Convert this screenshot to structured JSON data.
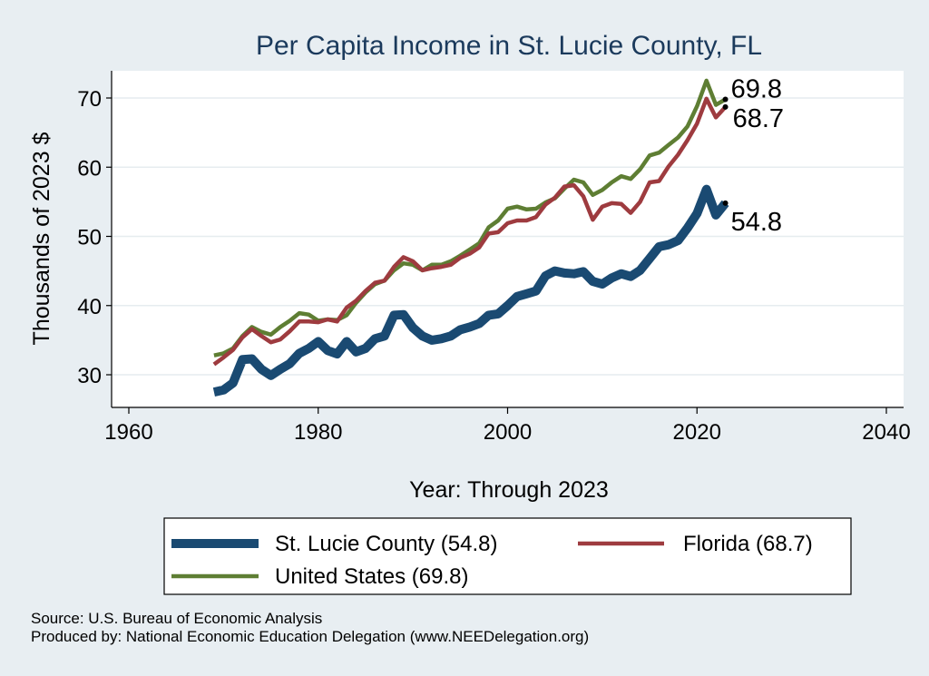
{
  "chart_data": {
    "type": "line",
    "title": "Per Capita Income in St. Lucie County, FL",
    "xlabel": "Year: Through 2023",
    "ylabel": "Thousands of 2023 $",
    "xlim": [
      1960,
      2040
    ],
    "ylim": [
      25,
      75
    ],
    "xticks": [
      1960,
      1980,
      2000,
      2020,
      2040
    ],
    "yticks": [
      30,
      40,
      50,
      60,
      70
    ],
    "grid": "horizontal",
    "legend_position": "bottom",
    "series": [
      {
        "name": "St. Lucie County (54.8)",
        "color": "#1a4a72",
        "end_label": "54.8",
        "x": [
          1969,
          1970,
          1971,
          1972,
          1973,
          1974,
          1975,
          1976,
          1977,
          1978,
          1979,
          1980,
          1981,
          1982,
          1983,
          1984,
          1985,
          1986,
          1987,
          1988,
          1989,
          1990,
          1991,
          1992,
          1993,
          1994,
          1995,
          1996,
          1997,
          1998,
          1999,
          2000,
          2001,
          2002,
          2003,
          2004,
          2005,
          2006,
          2007,
          2008,
          2009,
          2010,
          2011,
          2012,
          2013,
          2014,
          2015,
          2016,
          2017,
          2018,
          2019,
          2020,
          2021,
          2022,
          2023
        ],
        "y": [
          27.5,
          27.8,
          28.8,
          32.2,
          32.3,
          30.8,
          29.9,
          30.8,
          31.6,
          33.1,
          33.8,
          34.8,
          33.5,
          33.0,
          34.8,
          33.3,
          33.8,
          35.2,
          35.6,
          38.6,
          38.7,
          36.8,
          35.6,
          35.0,
          35.2,
          35.6,
          36.5,
          36.9,
          37.4,
          38.6,
          38.8,
          40.0,
          41.3,
          41.7,
          42.1,
          44.3,
          45.0,
          44.7,
          44.6,
          44.9,
          43.5,
          43.1,
          44.0,
          44.6,
          44.2,
          45.1,
          46.8,
          48.5,
          48.8,
          49.4,
          51.2,
          53.3,
          56.8,
          53.1,
          54.8
        ]
      },
      {
        "name": "Florida (68.7)",
        "color": "#9e3b3f",
        "end_label": "68.7",
        "x": [
          1969,
          1970,
          1971,
          1972,
          1973,
          1974,
          1975,
          1976,
          1977,
          1978,
          1979,
          1980,
          1981,
          1982,
          1983,
          1984,
          1985,
          1986,
          1987,
          1988,
          1989,
          1990,
          1991,
          1992,
          1993,
          1994,
          1995,
          1996,
          1997,
          1998,
          1999,
          2000,
          2001,
          2002,
          2003,
          2004,
          2005,
          2006,
          2007,
          2008,
          2009,
          2010,
          2011,
          2012,
          2013,
          2014,
          2015,
          2016,
          2017,
          2018,
          2019,
          2020,
          2021,
          2022,
          2023
        ],
        "y": [
          31.5,
          32.5,
          33.6,
          35.4,
          36.6,
          35.6,
          34.7,
          35.1,
          36.3,
          37.7,
          37.7,
          37.6,
          38.0,
          37.7,
          39.7,
          40.7,
          42.1,
          43.3,
          43.6,
          45.6,
          47.0,
          46.4,
          45.1,
          45.4,
          45.6,
          45.9,
          46.9,
          47.5,
          48.4,
          50.4,
          50.6,
          51.9,
          52.3,
          52.3,
          52.8,
          54.6,
          55.6,
          57.2,
          57.4,
          55.8,
          52.4,
          54.3,
          54.8,
          54.7,
          53.4,
          55.0,
          57.8,
          58.0,
          60.1,
          61.8,
          63.9,
          66.3,
          69.9,
          67.2,
          68.7
        ]
      },
      {
        "name": "United States (69.8)",
        "color": "#5e7e33",
        "end_label": "69.8",
        "x": [
          1969,
          1970,
          1971,
          1972,
          1973,
          1974,
          1975,
          1976,
          1977,
          1978,
          1979,
          1980,
          1981,
          1982,
          1983,
          1984,
          1985,
          1986,
          1987,
          1988,
          1989,
          1990,
          1991,
          1992,
          1993,
          1994,
          1995,
          1996,
          1997,
          1998,
          1999,
          2000,
          2001,
          2002,
          2003,
          2004,
          2005,
          2006,
          2007,
          2008,
          2009,
          2010,
          2011,
          2012,
          2013,
          2014,
          2015,
          2016,
          2017,
          2018,
          2019,
          2020,
          2021,
          2022,
          2023
        ],
        "y": [
          32.8,
          33.1,
          33.8,
          35.6,
          36.9,
          36.2,
          35.8,
          36.9,
          37.8,
          38.9,
          38.7,
          37.8,
          38.0,
          37.9,
          38.6,
          40.4,
          41.9,
          43.1,
          43.6,
          45.1,
          46.1,
          45.9,
          45.1,
          45.9,
          45.9,
          46.4,
          47.2,
          48.1,
          49.0,
          51.3,
          52.3,
          54.0,
          54.3,
          53.9,
          54.0,
          54.9,
          55.5,
          56.9,
          58.2,
          57.8,
          56.0,
          56.7,
          57.8,
          58.7,
          58.3,
          59.7,
          61.7,
          62.1,
          63.2,
          64.3,
          65.9,
          68.8,
          72.5,
          69.0,
          69.8
        ]
      }
    ]
  },
  "notes": {
    "source": "Source: U.S. Bureau of Economic Analysis",
    "produced_by": "Produced by: National Economic Education Delegation (www.NEEDelegation.org)"
  }
}
